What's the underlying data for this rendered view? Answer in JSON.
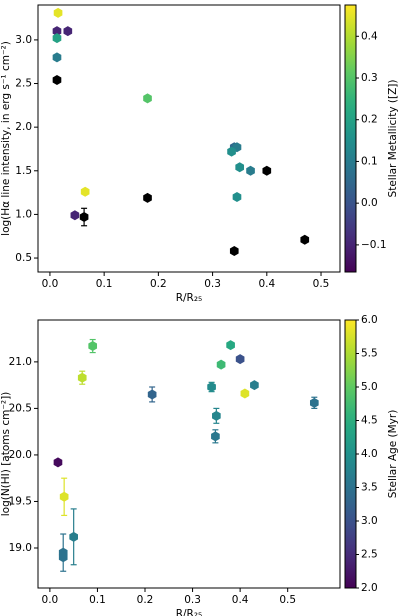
{
  "chart_data": [
    {
      "type": "scatter",
      "xlabel": "R/R₂₅",
      "ylabel": "log(Hα line intensity, in erg s⁻¹ cm⁻²)",
      "x": [
        0.015,
        0.013,
        0.033,
        0.013,
        0.013,
        0.013,
        0.18,
        0.065,
        0.046,
        0.063,
        0.18,
        0.34,
        0.345,
        0.335,
        0.35,
        0.37,
        0.4,
        0.345,
        0.34,
        0.47
      ],
      "values": [
        3.31,
        3.1,
        3.1,
        3.02,
        2.8,
        2.54,
        2.33,
        1.26,
        0.99,
        0.97,
        1.19,
        1.77,
        1.77,
        1.72,
        1.54,
        1.5,
        1.5,
        1.2,
        0.58,
        0.71
      ],
      "color_values": [
        0.45,
        -0.1,
        -0.1,
        0.2,
        0.1,
        null,
        0.3,
        0.45,
        -0.1,
        null,
        null,
        0.05,
        0.1,
        0.15,
        0.15,
        0.1,
        null,
        0.15,
        null,
        null
      ],
      "yerr": [
        null,
        null,
        null,
        null,
        null,
        null,
        null,
        null,
        null,
        0.1,
        null,
        null,
        null,
        null,
        null,
        null,
        null,
        null,
        null,
        null
      ],
      "missing_color": "#000000",
      "xlim": [
        -0.022,
        0.535
      ],
      "ylim": [
        0.34,
        3.4
      ],
      "xticks": [
        {
          "value": 0,
          "label": "0.0"
        },
        0.1,
        0.2,
        0.3,
        0.4,
        0.5
      ],
      "yticks": [
        0.5,
        {
          "value": 1,
          "label": "1.0"
        },
        1.5,
        {
          "value": 2,
          "label": "2.0"
        },
        2.5,
        {
          "value": 3,
          "label": "3.0"
        }
      ],
      "colorbar": {
        "label": "Stellar Metallicity ([Z])",
        "colormap": "viridis",
        "lim": [
          -0.165,
          0.475
        ],
        "ticks": [
          {
            "value": -0.1,
            "label": "−0.1"
          },
          {
            "value": 0,
            "label": "0.0"
          },
          0.1,
          0.2,
          0.3,
          0.4
        ]
      }
    },
    {
      "type": "scatter",
      "xlabel": "R/R₂₅",
      "ylabel": "log(N(HI) [atoms cm⁻²])",
      "x": [
        0.017,
        0.03,
        0.028,
        0.028,
        0.05,
        0.068,
        0.09,
        0.215,
        0.34,
        0.35,
        0.348,
        0.36,
        0.38,
        0.4,
        0.41,
        0.43,
        0.556
      ],
      "values": [
        19.92,
        19.55,
        18.95,
        18.9,
        19.12,
        20.83,
        21.17,
        20.65,
        20.73,
        20.42,
        20.2,
        20.97,
        21.18,
        21.03,
        20.66,
        20.75,
        20.56
      ],
      "color_values": [
        2.1,
        5.8,
        3.5,
        3.5,
        3.7,
        5.6,
        4.9,
        3.3,
        3.9,
        3.8,
        3.6,
        4.7,
        4.4,
        3.0,
        5.8,
        3.7,
        3.5
      ],
      "yerr": [
        null,
        0.2,
        0.2,
        null,
        0.3,
        0.07,
        0.07,
        0.08,
        0.05,
        0.08,
        0.07,
        null,
        null,
        null,
        null,
        null,
        0.06
      ],
      "xlim": [
        -0.025,
        0.61
      ],
      "ylim": [
        18.57,
        21.45
      ],
      "xticks": [
        {
          "value": 0,
          "label": "0.0"
        },
        0.1,
        0.2,
        0.3,
        0.4,
        0.5
      ],
      "yticks": [
        {
          "value": 19,
          "label": "19.0"
        },
        19.5,
        {
          "value": 20,
          "label": "20.0"
        },
        20.5,
        {
          "value": 21,
          "label": "21.0"
        }
      ],
      "colorbar": {
        "label": "Stellar Age (Myr)",
        "colormap": "viridis",
        "lim": [
          2,
          6
        ],
        "ticks": [
          {
            "value": 2,
            "label": "2.0"
          },
          2.5,
          {
            "value": 3,
            "label": "3.0"
          },
          3.5,
          {
            "value": 4,
            "label": "4.0"
          },
          4.5,
          {
            "value": 5,
            "label": "5.0"
          },
          5.5,
          {
            "value": 6,
            "label": "6.0"
          }
        ]
      }
    }
  ]
}
